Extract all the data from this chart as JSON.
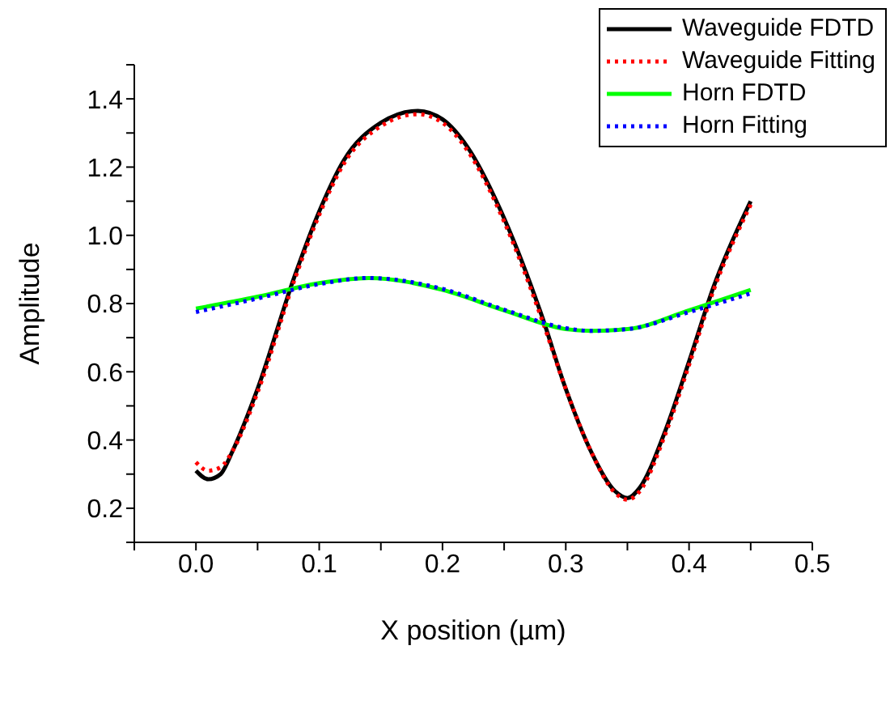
{
  "chart_data": {
    "type": "line",
    "xlabel": "X position (µm)",
    "ylabel": "Amplitude",
    "xlim": [
      -0.05,
      0.5
    ],
    "ylim": [
      0.1,
      1.5
    ],
    "xticks": [
      {
        "value": -0.05,
        "label": null
      },
      {
        "value": 0,
        "label": "0.0"
      },
      {
        "value": 0.05,
        "label": null
      },
      0.1,
      {
        "value": 0.15,
        "label": null
      },
      0.2,
      {
        "value": 0.25,
        "label": null
      },
      0.3,
      {
        "value": 0.35,
        "label": null
      },
      0.4,
      {
        "value": 0.45,
        "label": null
      },
      0.5
    ],
    "yticks": [
      {
        "value": 0.1,
        "label": null
      },
      0.2,
      {
        "value": 0.3,
        "label": null
      },
      0.4,
      {
        "value": 0.5,
        "label": null
      },
      0.6,
      {
        "value": 0.7,
        "label": null
      },
      0.8,
      {
        "value": 0.9,
        "label": null
      },
      {
        "value": 1,
        "label": "1.0"
      },
      {
        "value": 1.1,
        "label": null
      },
      1.2,
      {
        "value": 1.3,
        "label": null
      },
      1.4,
      {
        "value": 1.5,
        "label": null
      }
    ],
    "grid": false,
    "legend": "top right",
    "marker": "none",
    "series": [
      {
        "name": "Waveguide FDTD",
        "color": "#000000",
        "line_style": "solid",
        "x": [
          0,
          0.01,
          0.02,
          0.03,
          0.05,
          0.08,
          0.1,
          0.12,
          0.15,
          0.18,
          0.2,
          0.22,
          0.25,
          0.28,
          0.3,
          0.32,
          0.34,
          0.35,
          0.36,
          0.38,
          0.4,
          0.42,
          0.45
        ],
        "values": [
          0.31,
          0.285,
          0.3,
          0.37,
          0.55,
          0.88,
          1.07,
          1.22,
          1.33,
          1.365,
          1.34,
          1.26,
          1.05,
          0.77,
          0.55,
          0.37,
          0.25,
          0.23,
          0.26,
          0.42,
          0.63,
          0.85,
          1.1
        ]
      },
      {
        "name": "Waveguide Fitting",
        "color": "#ff0000",
        "line_style": "dotted",
        "x": [
          0,
          0.01,
          0.02,
          0.03,
          0.05,
          0.08,
          0.1,
          0.12,
          0.15,
          0.18,
          0.2,
          0.22,
          0.25,
          0.28,
          0.3,
          0.32,
          0.34,
          0.35,
          0.36,
          0.38,
          0.4,
          0.42,
          0.45
        ],
        "values": [
          0.335,
          0.31,
          0.32,
          0.37,
          0.54,
          0.87,
          1.06,
          1.21,
          1.32,
          1.355,
          1.33,
          1.25,
          1.04,
          0.76,
          0.55,
          0.37,
          0.245,
          0.225,
          0.25,
          0.41,
          0.62,
          0.84,
          1.09
        ]
      },
      {
        "name": "Horn FDTD",
        "color": "#00ff00",
        "line_style": "solid",
        "x": [
          0,
          0.05,
          0.1,
          0.14,
          0.2,
          0.25,
          0.3,
          0.32,
          0.35,
          0.4,
          0.45
        ],
        "values": [
          0.785,
          0.82,
          0.86,
          0.875,
          0.84,
          0.78,
          0.725,
          0.72,
          0.725,
          0.78,
          0.84
        ]
      },
      {
        "name": "Horn Fitting",
        "color": "#0000ff",
        "line_style": "dotted",
        "x": [
          0,
          0.05,
          0.1,
          0.14,
          0.2,
          0.25,
          0.3,
          0.32,
          0.35,
          0.4,
          0.45
        ],
        "values": [
          0.775,
          0.815,
          0.857,
          0.875,
          0.843,
          0.782,
          0.728,
          0.72,
          0.725,
          0.775,
          0.83
        ]
      }
    ]
  }
}
